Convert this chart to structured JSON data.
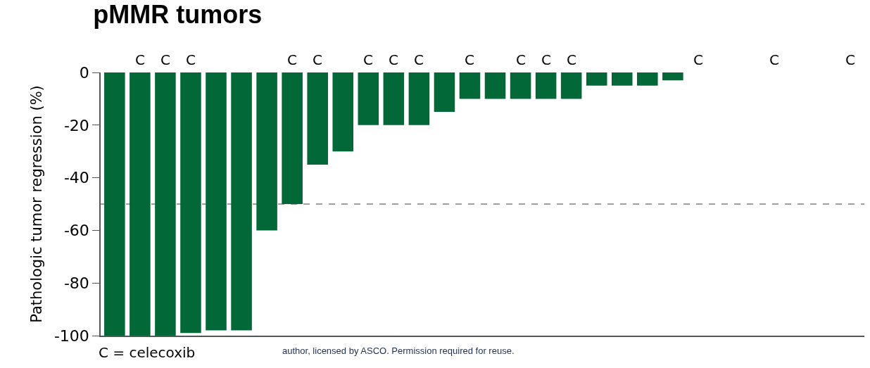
{
  "chart_data": {
    "type": "bar",
    "title": "pMMR tumors",
    "ylabel": "Pathologic tumor regression (%)",
    "categories": [
      null,
      null,
      null,
      null,
      null,
      null,
      null,
      null,
      null,
      null,
      null,
      null,
      null,
      null,
      null,
      null,
      null,
      null,
      null,
      null,
      null,
      null,
      null,
      null,
      null,
      null,
      null,
      null,
      null,
      null
    ],
    "values": [
      -100,
      -100,
      -100,
      -99,
      -98,
      -98,
      -60,
      -50,
      -35,
      -30,
      -20,
      -20,
      -20,
      -15,
      -10,
      -10,
      -10,
      -10,
      -10,
      -5,
      -5,
      -5,
      -3,
      0,
      0,
      0,
      0,
      0,
      0,
      0
    ],
    "value_labels": [
      null,
      "C",
      "C",
      "C",
      null,
      null,
      null,
      "C",
      "C",
      null,
      "C",
      "C",
      "C",
      null,
      "C",
      null,
      "C",
      "C",
      "C",
      null,
      null,
      null,
      null,
      "C",
      null,
      null,
      "C",
      null,
      null,
      "C"
    ],
    "color": "#036837",
    "ylim": [
      -100,
      0
    ],
    "yticks": [
      0,
      -20,
      -40,
      -60,
      -80,
      -100
    ],
    "ref_lines": [
      {
        "axis": "y",
        "value": -50,
        "color": "#808080",
        "line_style": "dashed"
      }
    ],
    "tick_labels": "y",
    "grid": false,
    "annotations": [
      "C = celecoxib",
      "author, licensed by ASCO. Permission required for reuse."
    ]
  }
}
